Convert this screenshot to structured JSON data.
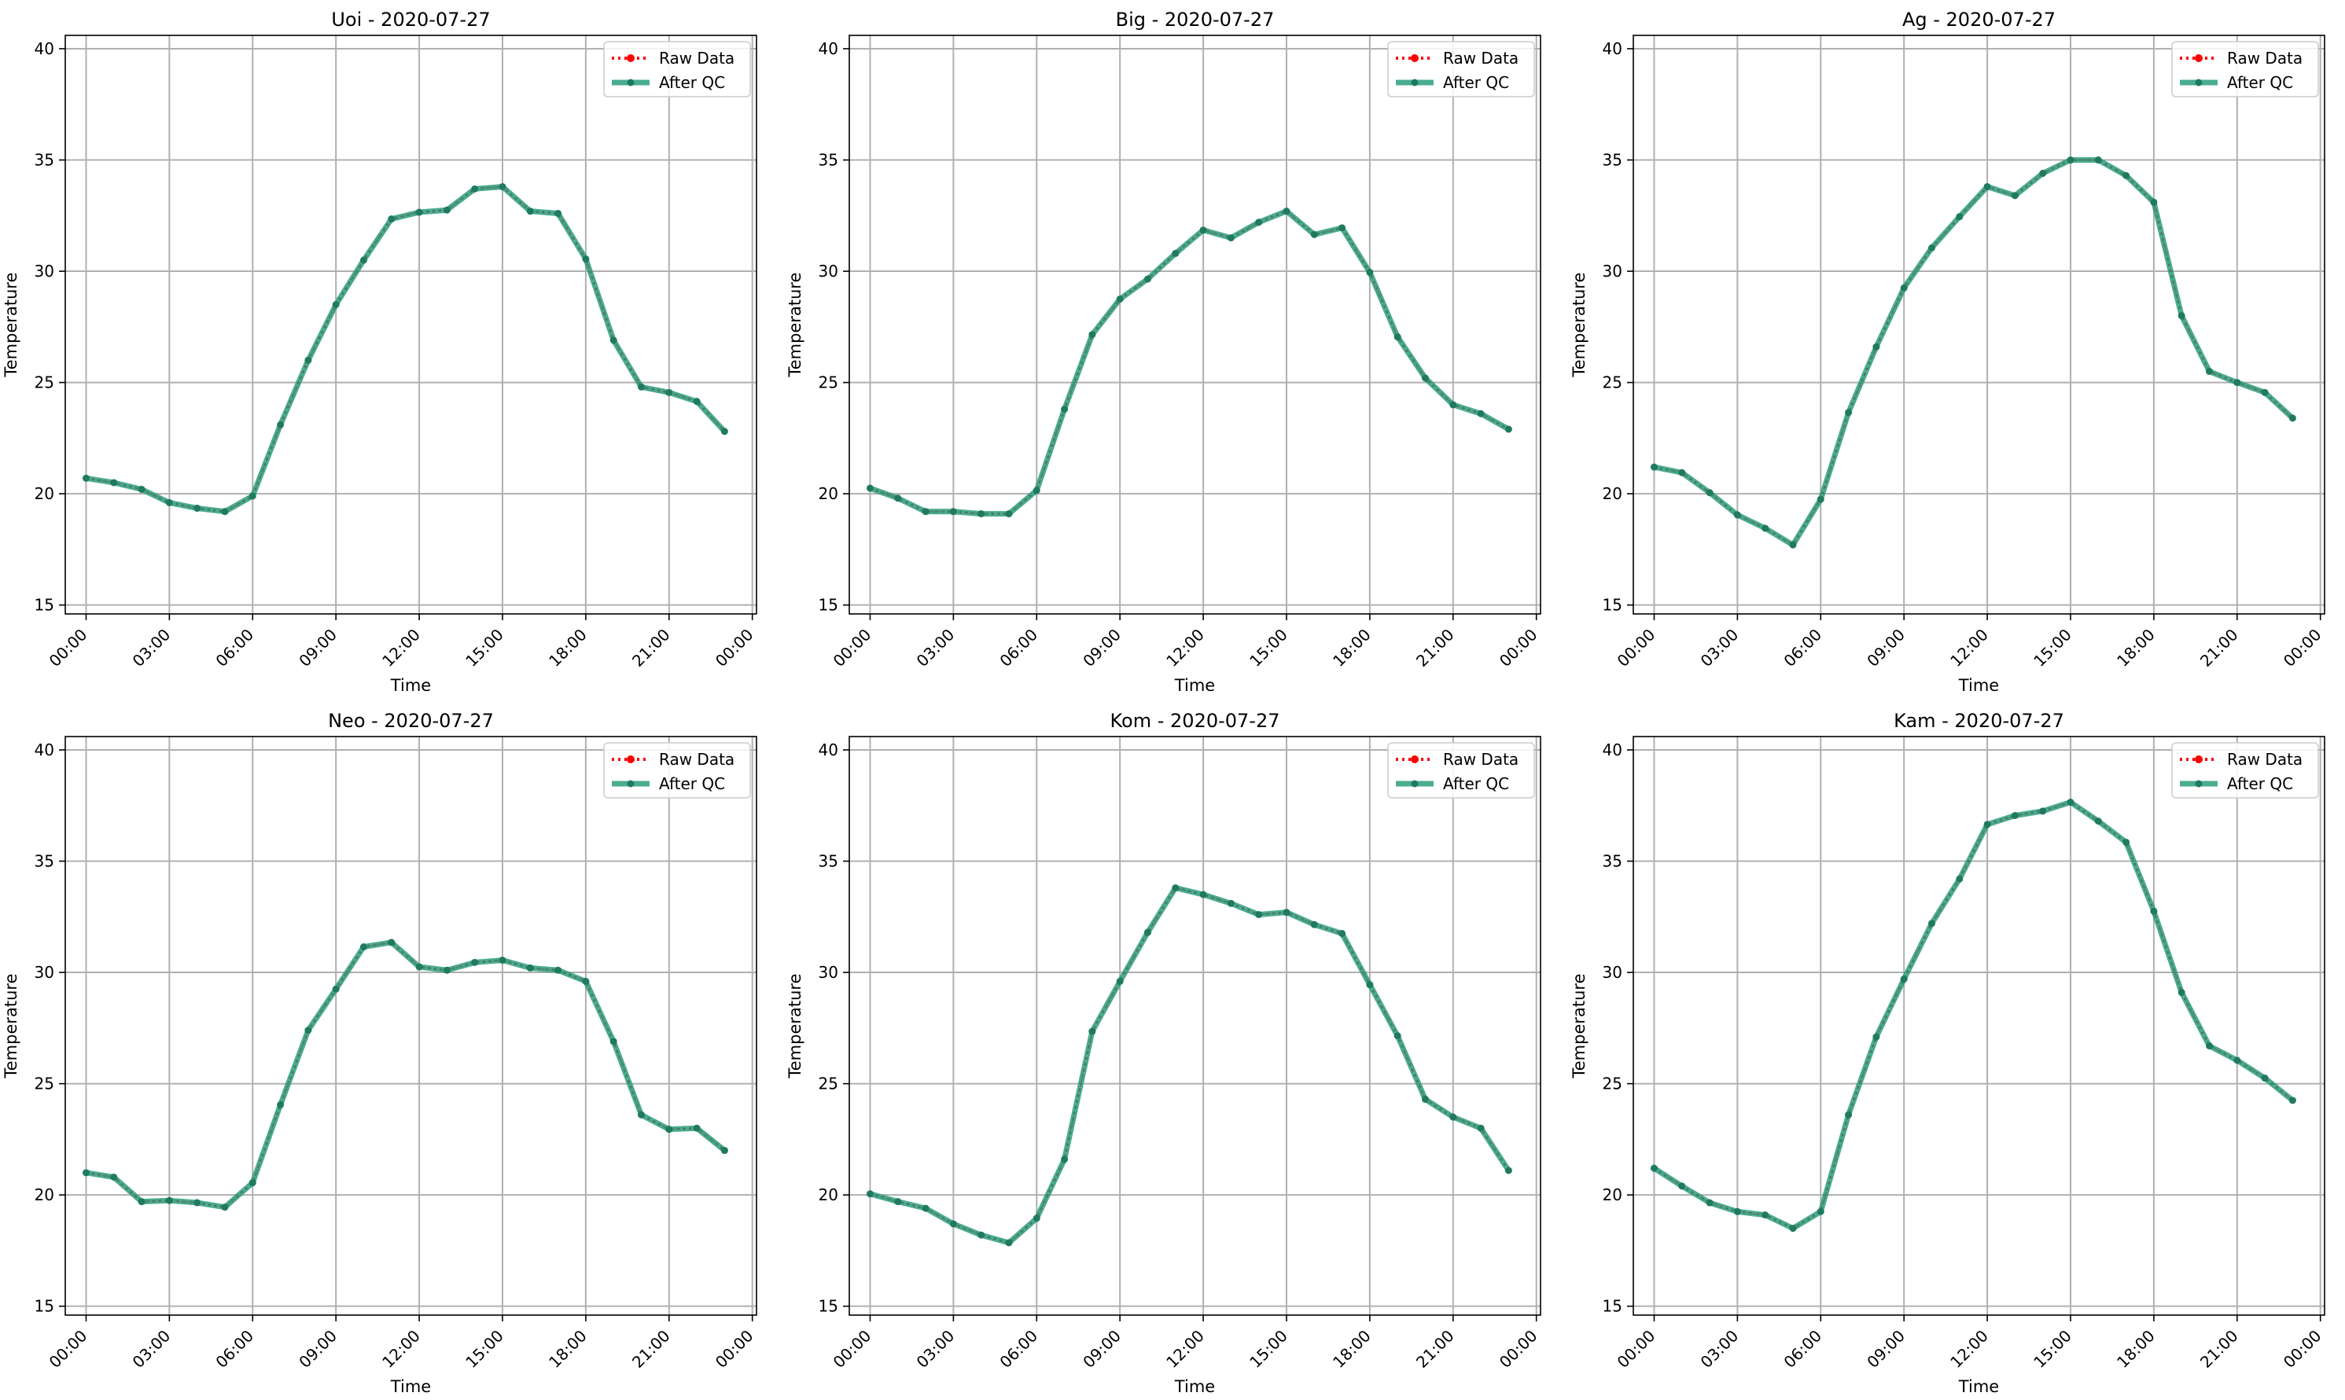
{
  "legend": {
    "raw_label": "Raw Data",
    "qc_label": "After QC"
  },
  "colors": {
    "raw": "#ff0000",
    "qc": "#2a9d7c",
    "qc_marker": "#1f7a60"
  },
  "chart_data": [
    {
      "type": "line",
      "title": "Uoi - 2020-07-27",
      "xlabel": "Time",
      "ylabel": "Temperature",
      "ylim": [
        14.6,
        40.6
      ],
      "xlim_hours": [
        -0.75,
        24.15
      ],
      "xticks": [
        "00:00",
        "03:00",
        "06:00",
        "09:00",
        "12:00",
        "15:00",
        "18:00",
        "21:00",
        "00:00"
      ],
      "yticks": [
        "15",
        "20",
        "25",
        "30",
        "35",
        "40"
      ],
      "grid": true,
      "legend": "top-right",
      "x": [
        "00:00",
        "01:00",
        "02:00",
        "03:00",
        "04:00",
        "05:00",
        "06:00",
        "07:00",
        "08:00",
        "09:00",
        "10:00",
        "11:00",
        "12:00",
        "13:00",
        "14:00",
        "15:00",
        "16:00",
        "17:00",
        "18:00",
        "19:00",
        "20:00",
        "21:00",
        "22:00",
        "23:00"
      ],
      "series": [
        {
          "name": "Raw Data",
          "values": [
            20.7,
            20.5,
            20.2,
            19.6,
            19.35,
            19.2,
            19.9,
            23.1,
            26.0,
            28.5,
            30.5,
            32.35,
            32.65,
            32.75,
            33.7,
            33.8,
            32.7,
            32.6,
            30.55,
            26.9,
            24.8,
            24.55,
            24.15,
            22.8
          ]
        },
        {
          "name": "After QC",
          "values": [
            20.7,
            20.5,
            20.2,
            19.6,
            19.35,
            19.2,
            19.9,
            23.1,
            26.0,
            28.5,
            30.5,
            32.35,
            32.65,
            32.75,
            33.7,
            33.8,
            32.7,
            32.6,
            30.55,
            26.9,
            24.8,
            24.55,
            24.15,
            22.8
          ]
        }
      ]
    },
    {
      "type": "line",
      "title": "Big - 2020-07-27",
      "xlabel": "Time",
      "ylabel": "Temperature",
      "ylim": [
        14.6,
        40.6
      ],
      "xlim_hours": [
        -0.75,
        24.15
      ],
      "xticks": [
        "00:00",
        "03:00",
        "06:00",
        "09:00",
        "12:00",
        "15:00",
        "18:00",
        "21:00",
        "00:00"
      ],
      "yticks": [
        "15",
        "20",
        "25",
        "30",
        "35",
        "40"
      ],
      "grid": true,
      "legend": "top-right",
      "x": [
        "00:00",
        "01:00",
        "02:00",
        "03:00",
        "04:00",
        "05:00",
        "06:00",
        "07:00",
        "08:00",
        "09:00",
        "10:00",
        "11:00",
        "12:00",
        "13:00",
        "14:00",
        "15:00",
        "16:00",
        "17:00",
        "18:00",
        "19:00",
        "20:00",
        "21:00",
        "22:00",
        "23:00"
      ],
      "series": [
        {
          "name": "Raw Data",
          "values": [
            20.25,
            19.8,
            19.2,
            19.2,
            19.1,
            19.1,
            20.15,
            23.8,
            27.15,
            28.75,
            29.65,
            30.8,
            31.85,
            31.5,
            32.2,
            32.7,
            31.65,
            31.95,
            29.95,
            27.05,
            25.2,
            24.0,
            23.6,
            22.9
          ]
        },
        {
          "name": "After QC",
          "values": [
            20.25,
            19.8,
            19.2,
            19.2,
            19.1,
            19.1,
            20.15,
            23.8,
            27.15,
            28.75,
            29.65,
            30.8,
            31.85,
            31.5,
            32.2,
            32.7,
            31.65,
            31.95,
            29.95,
            27.05,
            25.2,
            24.0,
            23.6,
            22.9
          ]
        }
      ]
    },
    {
      "type": "line",
      "title": "Ag - 2020-07-27",
      "xlabel": "Time",
      "ylabel": "Temperature",
      "ylim": [
        14.6,
        40.6
      ],
      "xlim_hours": [
        -0.75,
        24.15
      ],
      "xticks": [
        "00:00",
        "03:00",
        "06:00",
        "09:00",
        "12:00",
        "15:00",
        "18:00",
        "21:00",
        "00:00"
      ],
      "yticks": [
        "15",
        "20",
        "25",
        "30",
        "35",
        "40"
      ],
      "grid": true,
      "legend": "top-right",
      "x": [
        "00:00",
        "01:00",
        "02:00",
        "03:00",
        "04:00",
        "05:00",
        "06:00",
        "07:00",
        "08:00",
        "09:00",
        "10:00",
        "11:00",
        "12:00",
        "13:00",
        "14:00",
        "15:00",
        "16:00",
        "17:00",
        "18:00",
        "19:00",
        "20:00",
        "21:00",
        "22:00",
        "23:00"
      ],
      "series": [
        {
          "name": "Raw Data",
          "values": [
            21.2,
            20.95,
            20.05,
            19.05,
            18.45,
            17.7,
            19.75,
            23.65,
            26.6,
            29.25,
            31.05,
            32.45,
            33.8,
            33.4,
            34.4,
            35.0,
            35.0,
            34.3,
            33.1,
            28.0,
            25.5,
            25.0,
            24.55,
            23.4
          ]
        },
        {
          "name": "After QC",
          "values": [
            21.2,
            20.95,
            20.05,
            19.05,
            18.45,
            17.7,
            19.75,
            23.65,
            26.6,
            29.25,
            31.05,
            32.45,
            33.8,
            33.4,
            34.4,
            35.0,
            35.0,
            34.3,
            33.1,
            28.0,
            25.5,
            25.0,
            24.55,
            23.4
          ]
        }
      ]
    },
    {
      "type": "line",
      "title": "Neo - 2020-07-27",
      "xlabel": "Time",
      "ylabel": "Temperature",
      "ylim": [
        14.6,
        40.6
      ],
      "xlim_hours": [
        -0.75,
        24.15
      ],
      "xticks": [
        "00:00",
        "03:00",
        "06:00",
        "09:00",
        "12:00",
        "15:00",
        "18:00",
        "21:00",
        "00:00"
      ],
      "yticks": [
        "15",
        "20",
        "25",
        "30",
        "35",
        "40"
      ],
      "grid": true,
      "legend": "top-right",
      "x": [
        "00:00",
        "01:00",
        "02:00",
        "03:00",
        "04:00",
        "05:00",
        "06:00",
        "07:00",
        "08:00",
        "09:00",
        "10:00",
        "11:00",
        "12:00",
        "13:00",
        "14:00",
        "15:00",
        "16:00",
        "17:00",
        "18:00",
        "19:00",
        "20:00",
        "21:00",
        "22:00",
        "23:00"
      ],
      "series": [
        {
          "name": "Raw Data",
          "values": [
            21.0,
            20.8,
            19.7,
            19.75,
            19.65,
            19.45,
            20.55,
            24.05,
            27.4,
            29.25,
            31.15,
            31.35,
            30.25,
            30.1,
            30.45,
            30.55,
            30.2,
            30.1,
            29.6,
            26.9,
            23.6,
            22.95,
            23.0,
            22.0
          ]
        },
        {
          "name": "After QC",
          "values": [
            21.0,
            20.8,
            19.7,
            19.75,
            19.65,
            19.45,
            20.55,
            24.05,
            27.4,
            29.25,
            31.15,
            31.35,
            30.25,
            30.1,
            30.45,
            30.55,
            30.2,
            30.1,
            29.6,
            26.9,
            23.6,
            22.95,
            23.0,
            22.0
          ]
        }
      ]
    },
    {
      "type": "line",
      "title": "Kom - 2020-07-27",
      "xlabel": "Time",
      "ylabel": "Temperature",
      "ylim": [
        14.6,
        40.6
      ],
      "xlim_hours": [
        -0.75,
        24.15
      ],
      "xticks": [
        "00:00",
        "03:00",
        "06:00",
        "09:00",
        "12:00",
        "15:00",
        "18:00",
        "21:00",
        "00:00"
      ],
      "yticks": [
        "15",
        "20",
        "25",
        "30",
        "35",
        "40"
      ],
      "grid": true,
      "legend": "top-right",
      "x": [
        "00:00",
        "01:00",
        "02:00",
        "03:00",
        "04:00",
        "05:00",
        "06:00",
        "07:00",
        "08:00",
        "09:00",
        "10:00",
        "11:00",
        "12:00",
        "13:00",
        "14:00",
        "15:00",
        "16:00",
        "17:00",
        "18:00",
        "19:00",
        "20:00",
        "21:00",
        "22:00",
        "23:00"
      ],
      "series": [
        {
          "name": "Raw Data",
          "values": [
            20.05,
            19.7,
            19.4,
            18.7,
            18.2,
            17.85,
            18.95,
            21.6,
            27.35,
            29.6,
            31.8,
            33.8,
            33.5,
            33.1,
            32.6,
            32.7,
            32.15,
            31.75,
            29.45,
            27.15,
            24.3,
            23.5,
            23.0,
            21.1
          ]
        },
        {
          "name": "After QC",
          "values": [
            20.05,
            19.7,
            19.4,
            18.7,
            18.2,
            17.85,
            18.95,
            21.6,
            27.35,
            29.6,
            31.8,
            33.8,
            33.5,
            33.1,
            32.6,
            32.7,
            32.15,
            31.75,
            29.45,
            27.15,
            24.3,
            23.5,
            23.0,
            21.1
          ]
        }
      ]
    },
    {
      "type": "line",
      "title": "Kam - 2020-07-27",
      "xlabel": "Time",
      "ylabel": "Temperature",
      "ylim": [
        14.6,
        40.6
      ],
      "xlim_hours": [
        -0.75,
        24.15
      ],
      "xticks": [
        "00:00",
        "03:00",
        "06:00",
        "09:00",
        "12:00",
        "15:00",
        "18:00",
        "21:00",
        "00:00"
      ],
      "yticks": [
        "15",
        "20",
        "25",
        "30",
        "35",
        "40"
      ],
      "grid": true,
      "legend": "top-right",
      "x": [
        "00:00",
        "01:00",
        "02:00",
        "03:00",
        "04:00",
        "05:00",
        "06:00",
        "07:00",
        "08:00",
        "09:00",
        "10:00",
        "11:00",
        "12:00",
        "13:00",
        "14:00",
        "15:00",
        "16:00",
        "17:00",
        "18:00",
        "19:00",
        "20:00",
        "21:00",
        "22:00",
        "23:00"
      ],
      "series": [
        {
          "name": "Raw Data",
          "values": [
            21.2,
            20.4,
            19.65,
            19.25,
            19.1,
            18.5,
            19.25,
            23.6,
            27.1,
            29.7,
            32.2,
            34.2,
            36.65,
            37.05,
            37.25,
            37.65,
            36.8,
            35.85,
            32.75,
            29.1,
            26.7,
            26.05,
            25.25,
            24.25
          ]
        },
        {
          "name": "After QC",
          "values": [
            21.2,
            20.4,
            19.65,
            19.25,
            19.1,
            18.5,
            19.25,
            23.6,
            27.1,
            29.7,
            32.2,
            34.2,
            36.65,
            37.05,
            37.25,
            37.65,
            36.8,
            35.85,
            32.75,
            29.1,
            26.7,
            26.05,
            25.25,
            24.25
          ]
        }
      ]
    }
  ]
}
